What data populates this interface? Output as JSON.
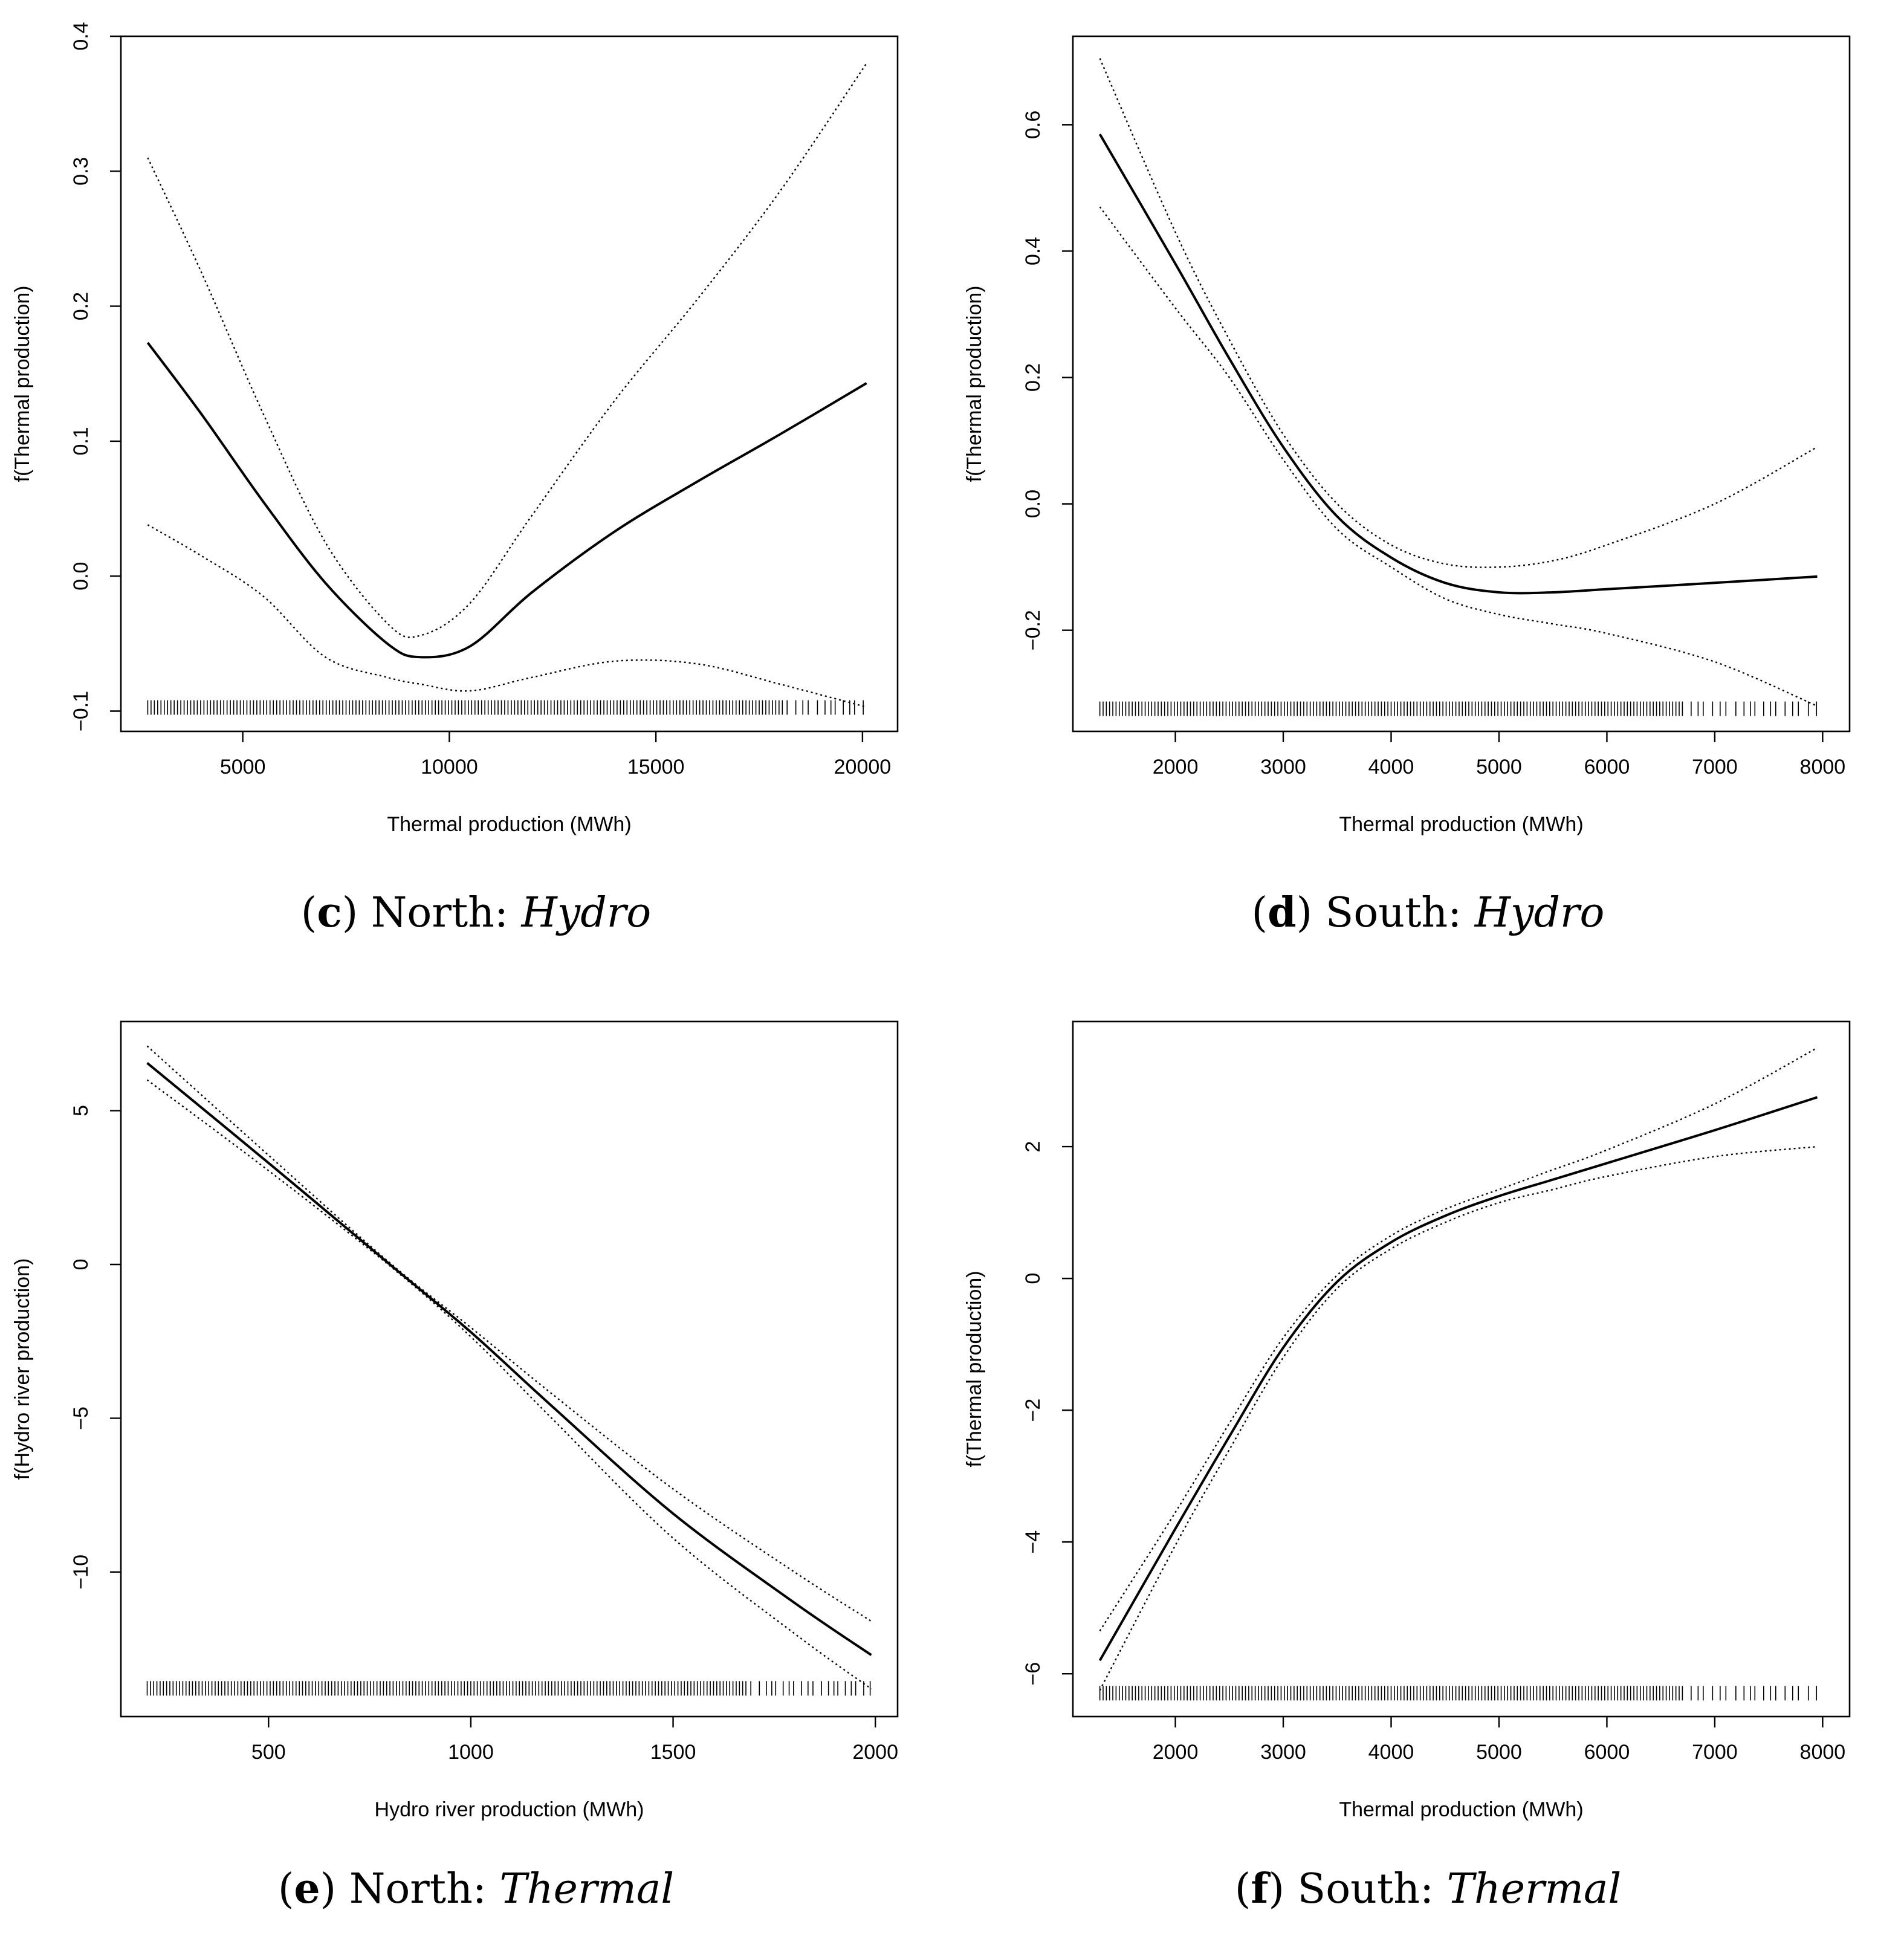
{
  "chart_data": [
    {
      "id": "c",
      "type": "line",
      "caption": {
        "letter": "c",
        "region": "North:",
        "variable": "Hydro"
      },
      "xlabel": "Thermal production (MWh)",
      "ylabel": "f(Thermal production)",
      "xlim": [
        2050,
        20850
      ],
      "ylim": [
        -0.115,
        0.4
      ],
      "xticks": [
        5000,
        10000,
        15000,
        20000
      ],
      "yticks": [
        -0.1,
        0.0,
        0.1,
        0.2,
        0.3,
        0.4
      ],
      "ytick_labels": [
        "−0.1",
        "0.0",
        "0.1",
        "0.2",
        "0.3",
        "0.4"
      ],
      "rug": {
        "from": 2700,
        "to": 20100,
        "dense_to": 18000,
        "dense_step": 80,
        "sparse_step": 170,
        "y": -0.1
      },
      "series": [
        {
          "name": "fit",
          "style": "solid",
          "x": [
            2700,
            4000,
            5500,
            7000,
            8500,
            9300,
            10500,
            12000,
            14000,
            16000,
            18000,
            20100
          ],
          "y": [
            0.173,
            0.12,
            0.055,
            -0.005,
            -0.05,
            -0.06,
            -0.052,
            -0.012,
            0.033,
            0.07,
            0.105,
            0.143
          ]
        },
        {
          "name": "upper",
          "style": "dotted",
          "x": [
            2700,
            4000,
            5500,
            7000,
            8500,
            9300,
            10500,
            12000,
            14000,
            16000,
            18000,
            20100
          ],
          "y": [
            0.31,
            0.225,
            0.12,
            0.025,
            -0.035,
            -0.044,
            -0.02,
            0.045,
            0.13,
            0.205,
            0.285,
            0.38
          ]
        },
        {
          "name": "lower",
          "style": "dotted",
          "x": [
            2700,
            4000,
            5500,
            7000,
            8500,
            9300,
            10500,
            12000,
            14000,
            16000,
            18000,
            20100
          ],
          "y": [
            0.038,
            0.015,
            -0.015,
            -0.06,
            -0.075,
            -0.08,
            -0.085,
            -0.075,
            -0.063,
            -0.065,
            -0.08,
            -0.097
          ]
        }
      ]
    },
    {
      "id": "d",
      "type": "line",
      "caption": {
        "letter": "d",
        "region": "South:",
        "variable": "Hydro"
      },
      "xlabel": "Thermal production (MWh)",
      "ylabel": "f(Thermal production)",
      "xlim": [
        1050,
        8250
      ],
      "ylim": [
        -0.36,
        0.74
      ],
      "xticks": [
        2000,
        3000,
        4000,
        5000,
        6000,
        7000,
        8000
      ],
      "yticks": [
        -0.2,
        0.0,
        0.2,
        0.4,
        0.6
      ],
      "ytick_labels": [
        "−0.2",
        "0.0",
        "0.2",
        "0.4",
        "0.6"
      ],
      "rug": {
        "from": 1300,
        "to": 7950,
        "dense_to": 6700,
        "dense_step": 30,
        "sparse_step": 70,
        "y": -0.33
      },
      "series": [
        {
          "name": "fit",
          "style": "solid",
          "x": [
            1300,
            2000,
            2500,
            3000,
            3500,
            4000,
            4500,
            5000,
            5500,
            6000,
            7000,
            7950
          ],
          "y": [
            0.585,
            0.38,
            0.23,
            0.09,
            -0.02,
            -0.085,
            -0.125,
            -0.14,
            -0.14,
            -0.135,
            -0.125,
            -0.115
          ]
        },
        {
          "name": "upper",
          "style": "dotted",
          "x": [
            1300,
            2000,
            2500,
            3000,
            3500,
            4000,
            4500,
            5000,
            5500,
            6000,
            7000,
            7950
          ],
          "y": [
            0.705,
            0.43,
            0.26,
            0.11,
            0.0,
            -0.065,
            -0.095,
            -0.1,
            -0.09,
            -0.065,
            0.0,
            0.09
          ]
        },
        {
          "name": "lower",
          "style": "dotted",
          "x": [
            1300,
            2000,
            2500,
            3000,
            3500,
            4000,
            4500,
            5000,
            5500,
            6000,
            7000,
            7950
          ],
          "y": [
            0.47,
            0.31,
            0.2,
            0.07,
            -0.04,
            -0.1,
            -0.15,
            -0.175,
            -0.19,
            -0.205,
            -0.25,
            -0.32
          ]
        }
      ]
    },
    {
      "id": "e",
      "type": "line",
      "caption": {
        "letter": "e",
        "region": "North:",
        "variable": "Thermal"
      },
      "xlabel": "Hydro river production (MWh)",
      "ylabel": "f(Hydro river production)",
      "xlim": [
        135,
        2055
      ],
      "ylim": [
        -14.7,
        7.9
      ],
      "xticks": [
        500,
        1000,
        1500,
        2000
      ],
      "yticks": [
        -10,
        -5,
        0,
        5
      ],
      "ytick_labels": [
        "−10",
        "−5",
        "0",
        "5"
      ],
      "rug": {
        "from": 200,
        "to": 1990,
        "dense_to": 1680,
        "dense_step": 8,
        "sparse_step": 16,
        "y": -13.9
      },
      "series": [
        {
          "name": "fit",
          "style": "solid",
          "x": [
            200,
            500,
            800,
            1000,
            1200,
            1500,
            1800,
            1990
          ],
          "y": [
            6.55,
            3.3,
            0.0,
            -2.2,
            -4.6,
            -8.1,
            -11.0,
            -12.7
          ]
        },
        {
          "name": "upper",
          "style": "dotted",
          "x": [
            200,
            500,
            800,
            1000,
            1200,
            1500,
            1800,
            1990
          ],
          "y": [
            7.1,
            3.55,
            0.05,
            -2.05,
            -4.2,
            -7.3,
            -10.0,
            -11.6
          ]
        },
        {
          "name": "lower",
          "style": "dotted",
          "x": [
            200,
            500,
            800,
            1000,
            1200,
            1500,
            1800,
            1990
          ],
          "y": [
            6.0,
            3.05,
            -0.05,
            -2.35,
            -5.0,
            -8.9,
            -12.0,
            -13.8
          ]
        }
      ]
    },
    {
      "id": "f",
      "type": "line",
      "caption": {
        "letter": "f",
        "region": "South:",
        "variable": "Thermal"
      },
      "xlabel": "Thermal production (MWh)",
      "ylabel": "f(Thermal production)",
      "xlim": [
        1050,
        8250
      ],
      "ylim": [
        -6.65,
        3.9
      ],
      "xticks": [
        2000,
        3000,
        4000,
        5000,
        6000,
        7000,
        8000
      ],
      "yticks": [
        -6,
        -4,
        -2,
        0,
        2
      ],
      "ytick_labels": [
        "−6",
        "−4",
        "−2",
        "0",
        "2"
      ],
      "rug": {
        "from": 1300,
        "to": 7950,
        "dense_to": 6700,
        "dense_step": 30,
        "sparse_step": 70,
        "y": -6.35
      },
      "series": [
        {
          "name": "fit",
          "style": "solid",
          "x": [
            1300,
            2000,
            2500,
            3000,
            3500,
            4000,
            4500,
            5000,
            5500,
            6000,
            7000,
            7950
          ],
          "y": [
            -5.8,
            -3.8,
            -2.4,
            -1.05,
            -0.05,
            0.55,
            0.95,
            1.25,
            1.5,
            1.75,
            2.25,
            2.75
          ]
        },
        {
          "name": "upper",
          "style": "dotted",
          "x": [
            1300,
            2000,
            2500,
            3000,
            3500,
            4000,
            4500,
            5000,
            5500,
            6000,
            7000,
            7950
          ],
          "y": [
            -5.35,
            -3.55,
            -2.2,
            -0.9,
            0.05,
            0.65,
            1.05,
            1.35,
            1.65,
            1.95,
            2.65,
            3.5
          ]
        },
        {
          "name": "lower",
          "style": "dotted",
          "x": [
            1300,
            2000,
            2500,
            3000,
            3500,
            4000,
            4500,
            5000,
            5500,
            6000,
            7000,
            7950
          ],
          "y": [
            -6.25,
            -4.05,
            -2.6,
            -1.2,
            -0.15,
            0.45,
            0.85,
            1.15,
            1.35,
            1.55,
            1.85,
            2.0
          ]
        }
      ]
    }
  ]
}
